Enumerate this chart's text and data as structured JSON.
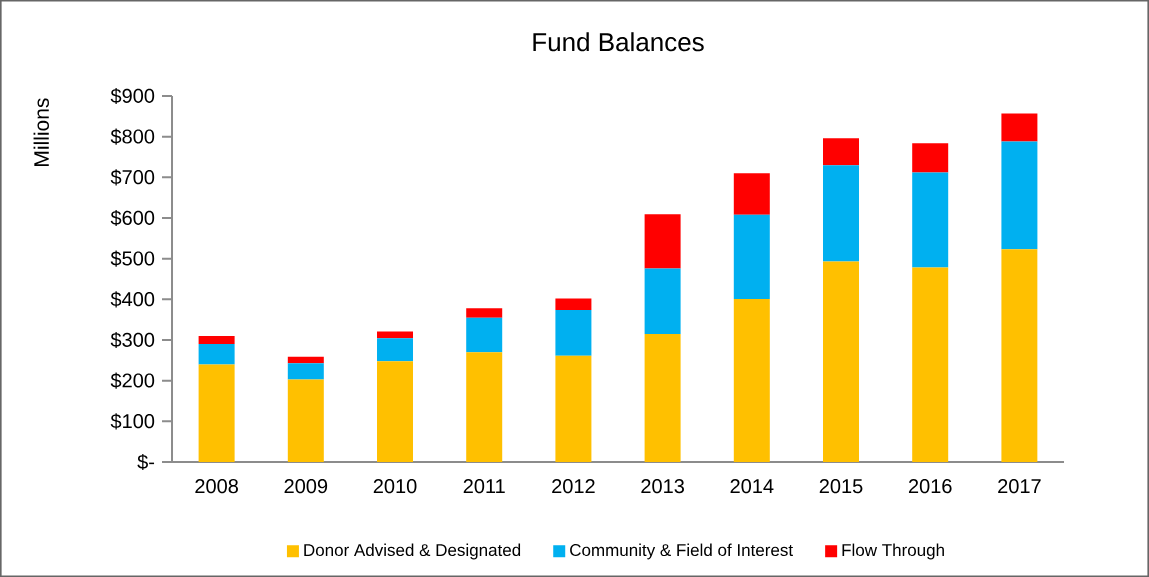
{
  "chart_data": {
    "type": "bar",
    "title": "Fund Balances",
    "ylabel": "Millions",
    "stacked": true,
    "legend": "bottom",
    "categories": [
      "2008",
      "2009",
      "2010",
      "2011",
      "2012",
      "2013",
      "2014",
      "2015",
      "2016",
      "2017"
    ],
    "series": [
      {
        "name": "Donor Advised & Designated",
        "color": "#ffc000",
        "values": [
          240,
          203,
          248,
          270,
          261,
          315,
          401,
          493,
          478,
          523
        ]
      },
      {
        "name": "Community & Field of Interest",
        "color": "#00b0f0",
        "values": [
          50,
          40,
          56,
          85,
          113,
          161,
          207,
          237,
          234,
          265
        ]
      },
      {
        "name": "Flow Through",
        "color": "#ff0000",
        "values": [
          20,
          16,
          17,
          23,
          28,
          133,
          102,
          66,
          72,
          69
        ]
      }
    ],
    "ylim": [
      0,
      900
    ],
    "yticks": [
      {
        "value": 0,
        "label": "$-"
      },
      {
        "value": 100,
        "label": "$100"
      },
      {
        "value": 200,
        "label": "$200"
      },
      {
        "value": 300,
        "label": "$300"
      },
      {
        "value": 400,
        "label": "$400"
      },
      {
        "value": 500,
        "label": "$500"
      },
      {
        "value": 600,
        "label": "$600"
      },
      {
        "value": 700,
        "label": "$700"
      },
      {
        "value": 800,
        "label": "$800"
      },
      {
        "value": 900,
        "label": "$900"
      }
    ]
  }
}
